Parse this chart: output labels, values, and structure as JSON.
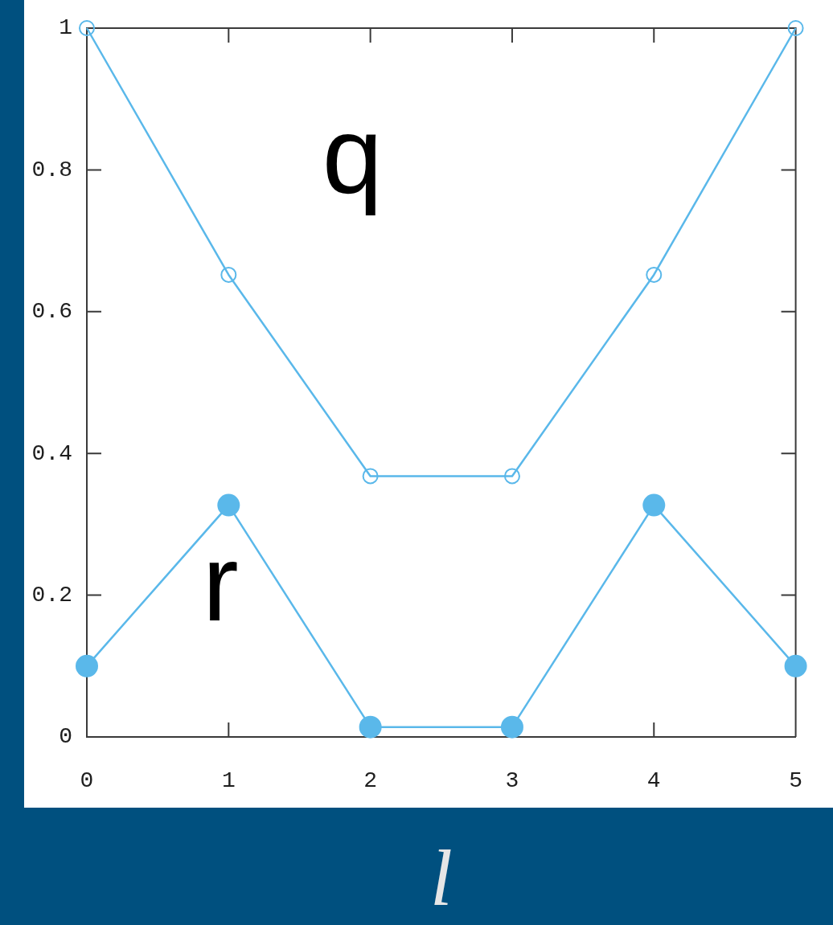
{
  "chart_data": {
    "type": "line",
    "xlabel": "l",
    "x": [
      0,
      1,
      2,
      3,
      4,
      5
    ],
    "series": [
      {
        "name": "q",
        "color": "#5ab8ea",
        "values": [
          1,
          0.652,
          0.368,
          0.368,
          0.652,
          1
        ]
      },
      {
        "name": "r",
        "color": "#5ab8ea",
        "values": [
          0.1,
          0.327,
          0.014,
          0.014,
          0.327,
          0.1
        ]
      }
    ],
    "xlim": [
      0,
      5
    ],
    "ylim": [
      0,
      1
    ],
    "xticks": [
      0,
      1,
      2,
      3,
      4,
      5
    ],
    "yticks": [
      0,
      0.2,
      0.4,
      0.6,
      0.8,
      1
    ],
    "marker": "circle"
  }
}
